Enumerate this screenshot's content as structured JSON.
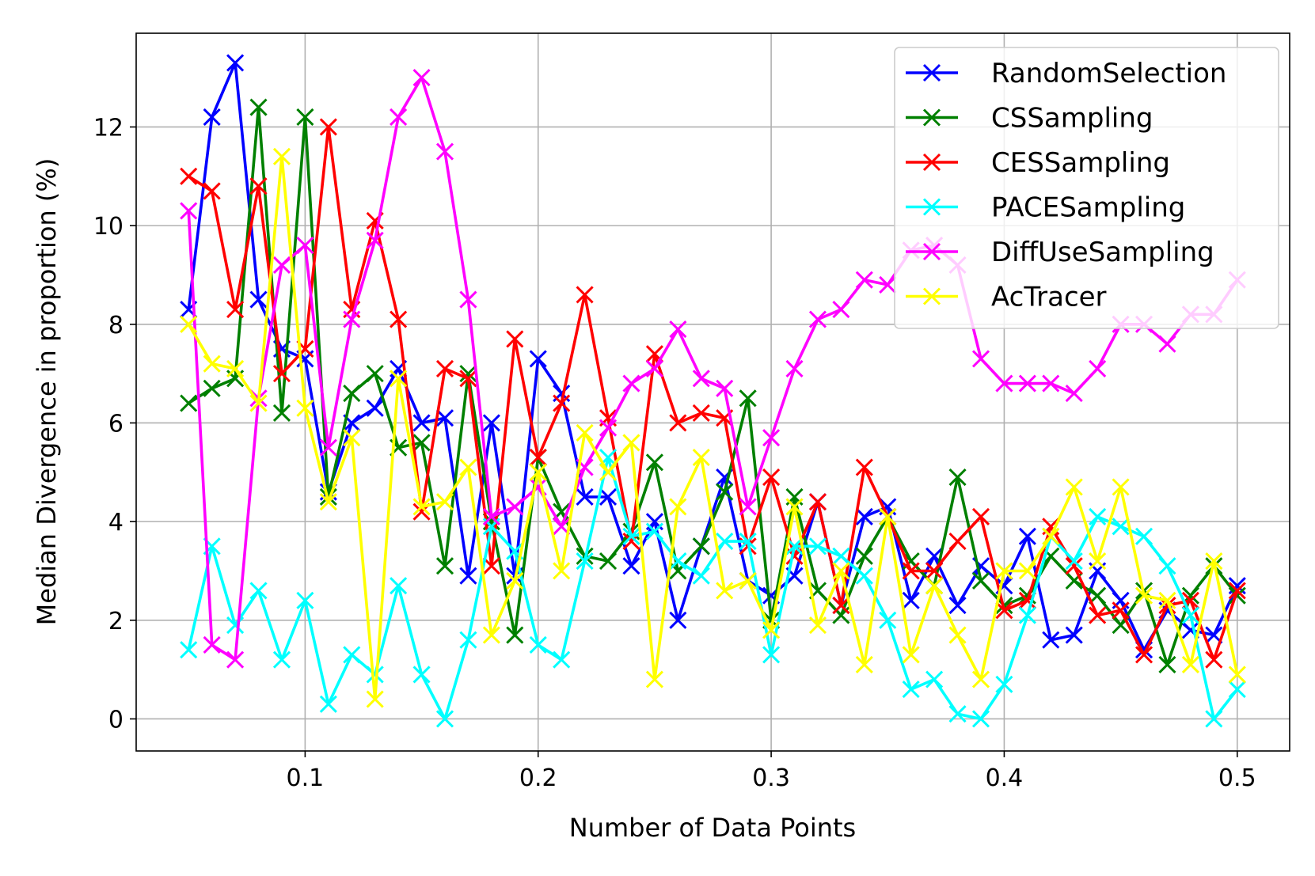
{
  "chart_data": {
    "type": "line",
    "title": "",
    "xlabel": "Number of Data Points",
    "ylabel": "Median Divergence in proportion (%)",
    "xlim": [
      0.0275,
      0.5225
    ],
    "ylim": [
      -0.65,
      13.9
    ],
    "xticks": [
      0.1,
      0.2,
      0.3,
      0.4,
      0.5
    ],
    "xtick_labels": [
      "0.1",
      "0.2",
      "0.3",
      "0.4",
      "0.5"
    ],
    "yticks": [
      0,
      2,
      4,
      6,
      8,
      10,
      12
    ],
    "ytick_labels": [
      "0",
      "2",
      "4",
      "6",
      "8",
      "10",
      "12"
    ],
    "grid": true,
    "legend_position": "top-right",
    "marker": "x",
    "x": [
      0.05,
      0.06,
      0.07,
      0.08,
      0.09,
      0.1,
      0.11,
      0.12,
      0.13,
      0.14,
      0.15,
      0.16,
      0.17,
      0.18,
      0.19,
      0.2,
      0.21,
      0.22,
      0.23,
      0.24,
      0.25,
      0.26,
      0.27,
      0.28,
      0.29,
      0.3,
      0.31,
      0.32,
      0.33,
      0.34,
      0.35,
      0.36,
      0.37,
      0.38,
      0.39,
      0.4,
      0.41,
      0.42,
      0.43,
      0.44,
      0.45,
      0.46,
      0.47,
      0.48,
      0.49,
      0.5
    ],
    "series": [
      {
        "name": "RandomSelection",
        "color": "#0000ff",
        "values": [
          8.3,
          12.2,
          13.3,
          8.5,
          7.5,
          7.3,
          4.6,
          6.0,
          6.3,
          7.1,
          6.0,
          6.1,
          2.9,
          6.0,
          2.9,
          7.3,
          6.6,
          4.5,
          4.5,
          3.1,
          4.0,
          2.0,
          3.5,
          4.9,
          2.8,
          2.5,
          2.9,
          4.4,
          2.3,
          4.1,
          4.3,
          2.4,
          3.3,
          2.3,
          3.1,
          2.7,
          3.7,
          1.6,
          1.7,
          3.0,
          2.4,
          1.4,
          2.2,
          1.8,
          1.7,
          2.7
        ]
      },
      {
        "name": "CSSampling",
        "color": "#008000",
        "values": [
          6.4,
          6.7,
          6.9,
          12.4,
          6.2,
          12.2,
          4.5,
          6.6,
          7.0,
          5.5,
          5.6,
          3.1,
          7.0,
          4.0,
          1.7,
          5.3,
          4.2,
          3.3,
          3.2,
          3.8,
          5.2,
          3.0,
          3.5,
          4.6,
          6.5,
          2.0,
          4.5,
          2.6,
          2.1,
          3.3,
          4.1,
          3.2,
          2.7,
          4.9,
          2.8,
          2.3,
          2.5,
          3.3,
          2.8,
          2.5,
          1.9,
          2.6,
          1.1,
          2.5,
          3.1,
          2.5
        ]
      },
      {
        "name": "CESSampling",
        "color": "#ff0000",
        "values": [
          11.0,
          10.7,
          8.3,
          10.8,
          7.0,
          7.5,
          12.0,
          8.3,
          10.1,
          8.1,
          4.2,
          7.1,
          6.9,
          3.1,
          7.7,
          5.3,
          6.4,
          8.6,
          6.1,
          3.6,
          7.4,
          6.0,
          6.2,
          6.1,
          3.5,
          4.9,
          3.3,
          4.4,
          2.3,
          5.1,
          4.1,
          3.0,
          3.0,
          3.6,
          4.1,
          2.2,
          2.4,
          3.9,
          3.1,
          2.1,
          2.2,
          1.3,
          2.3,
          2.4,
          1.2,
          2.6
        ]
      },
      {
        "name": "PACESampling",
        "color": "#00ffff",
        "values": [
          1.4,
          3.5,
          1.9,
          2.6,
          1.2,
          2.4,
          0.3,
          1.3,
          0.9,
          2.7,
          0.9,
          0.0,
          1.6,
          3.9,
          3.4,
          1.5,
          1.2,
          3.2,
          5.3,
          3.7,
          3.8,
          3.2,
          2.9,
          3.6,
          3.6,
          1.3,
          3.5,
          3.5,
          3.3,
          2.9,
          2.0,
          0.6,
          0.8,
          0.1,
          0.0,
          0.7,
          2.1,
          3.7,
          3.2,
          4.1,
          3.9,
          3.7,
          3.1,
          2.1,
          0.0,
          0.6
        ]
      },
      {
        "name": "DiffUseSampling",
        "color": "#ff00ff",
        "values": [
          10.3,
          1.5,
          1.2,
          6.5,
          9.2,
          9.6,
          5.5,
          8.1,
          9.7,
          12.2,
          13.0,
          11.5,
          8.5,
          4.1,
          4.3,
          4.7,
          3.9,
          5.1,
          5.9,
          6.8,
          7.1,
          7.9,
          6.9,
          6.7,
          4.3,
          5.7,
          7.1,
          8.1,
          8.3,
          8.9,
          8.8,
          9.5,
          9.6,
          9.2,
          7.3,
          6.8,
          6.8,
          6.8,
          6.6,
          7.1,
          8.0,
          8.0,
          7.6,
          8.2,
          8.2,
          8.9
        ]
      },
      {
        "name": "AcTracer",
        "color": "#ffff00",
        "values": [
          8.0,
          7.2,
          7.1,
          6.4,
          11.4,
          6.3,
          4.4,
          5.7,
          0.4,
          6.9,
          4.3,
          4.4,
          5.1,
          1.7,
          2.8,
          5.0,
          3.0,
          5.8,
          5.0,
          5.6,
          0.8,
          4.3,
          5.3,
          2.6,
          2.8,
          1.8,
          4.3,
          1.9,
          3.0,
          1.1,
          4.1,
          1.3,
          2.7,
          1.7,
          0.8,
          3.0,
          3.0,
          3.7,
          4.7,
          3.2,
          4.7,
          2.5,
          2.4,
          1.1,
          3.2,
          0.9
        ]
      }
    ]
  }
}
